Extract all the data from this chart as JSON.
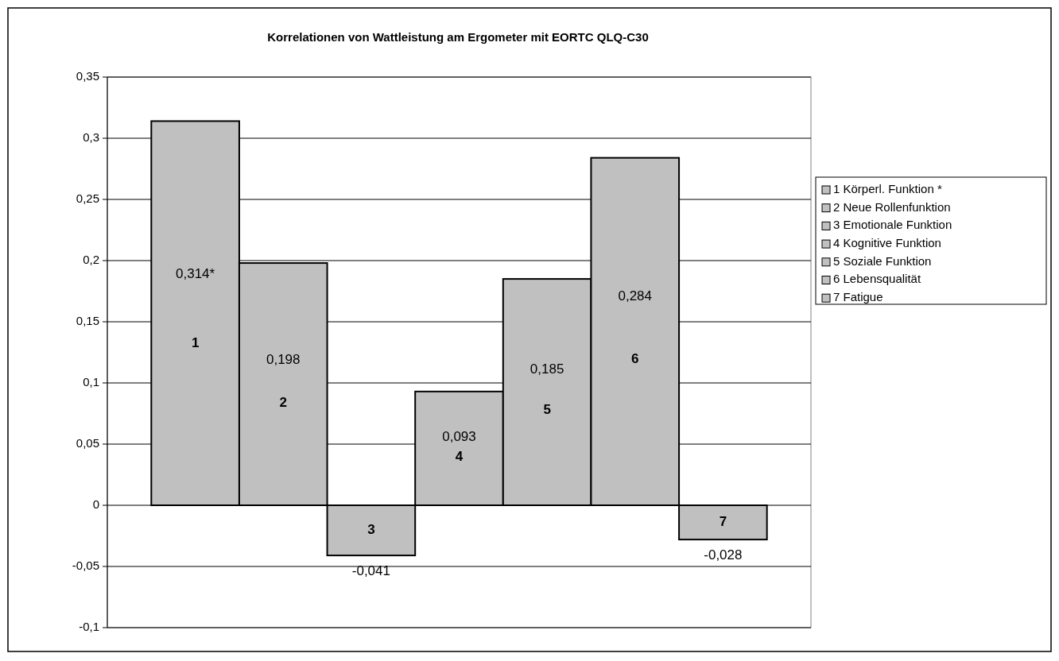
{
  "chart_data": {
    "type": "bar",
    "title": "Korrelationen von Wattleistung am Ergometer mit EORTC QLQ-C30",
    "categories": [
      null
    ],
    "series": [
      {
        "name": "1 Körperl. Funktion *",
        "color": "#c0c0c0",
        "values": [
          0.314
        ],
        "value_labels": [
          "0,314*"
        ]
      },
      {
        "name": "2 Neue Rollenfunktion",
        "color": "#c0c0c0",
        "values": [
          0.198
        ],
        "value_labels": [
          "0,198"
        ]
      },
      {
        "name": "3 Emotionale Funktion",
        "color": "#c0c0c0",
        "values": [
          -0.041
        ],
        "value_labels": [
          "-0,041"
        ]
      },
      {
        "name": "4 Kognitive Funktion",
        "color": "#c0c0c0",
        "values": [
          0.093
        ],
        "value_labels": [
          "0,093"
        ]
      },
      {
        "name": "5 Soziale Funktion",
        "color": "#c0c0c0",
        "values": [
          0.185
        ],
        "value_labels": [
          "0,185"
        ]
      },
      {
        "name": "6 Lebensqualität",
        "color": "#c0c0c0",
        "values": [
          0.284
        ],
        "value_labels": [
          "0,284"
        ]
      },
      {
        "name": "7 Fatigue",
        "color": "#c0c0c0",
        "values": [
          -0.028
        ],
        "value_labels": [
          "-0,028"
        ]
      }
    ],
    "annotations": [
      "1",
      "2",
      "3",
      "4",
      "5",
      "6",
      "7"
    ],
    "ylim": [
      -0.1,
      0.35
    ],
    "yticks": [
      {
        "value": -0.1,
        "label": "-0,1"
      },
      {
        "value": -0.05,
        "label": "-0,05"
      },
      0,
      {
        "value": 0.05,
        "label": "0,05"
      },
      {
        "value": 0.1,
        "label": "0,1"
      },
      {
        "value": 0.15,
        "label": "0,15"
      },
      {
        "value": 0.2,
        "label": "0,2"
      },
      {
        "value": 0.25,
        "label": "0,25"
      },
      {
        "value": 0.3,
        "label": "0,3"
      },
      {
        "value": 0.35,
        "label": "0,35"
      }
    ],
    "grid": "y",
    "legend": "right"
  }
}
